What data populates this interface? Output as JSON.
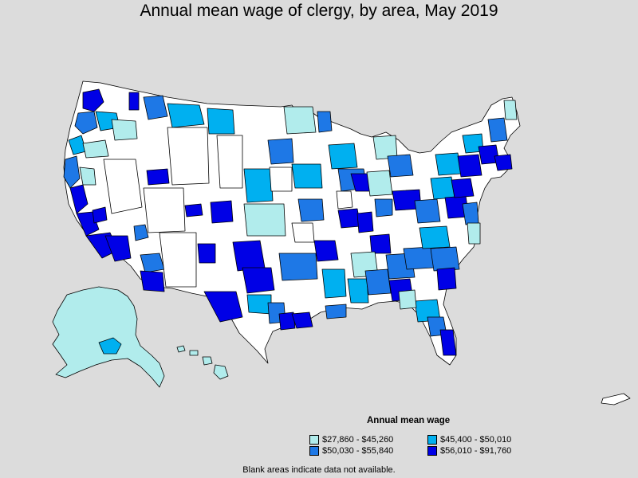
{
  "title": "Annual mean wage of clergy, by area, May 2019",
  "legend": {
    "title": "Annual mean wage",
    "items": [
      {
        "label": "$27,860 - $45,260",
        "color": "#b1ecec"
      },
      {
        "label": "$45,400 - $50,010",
        "color": "#00b0f0"
      },
      {
        "label": "$50,030 - $55,840",
        "color": "#1e78e6"
      },
      {
        "label": "$56,010 - $91,760",
        "color": "#0000e6"
      }
    ]
  },
  "footnote": "Blank areas indicate data not available.",
  "colors": {
    "background": "#dcdcdc",
    "no_data": "#ffffff",
    "border": "#000000"
  }
}
